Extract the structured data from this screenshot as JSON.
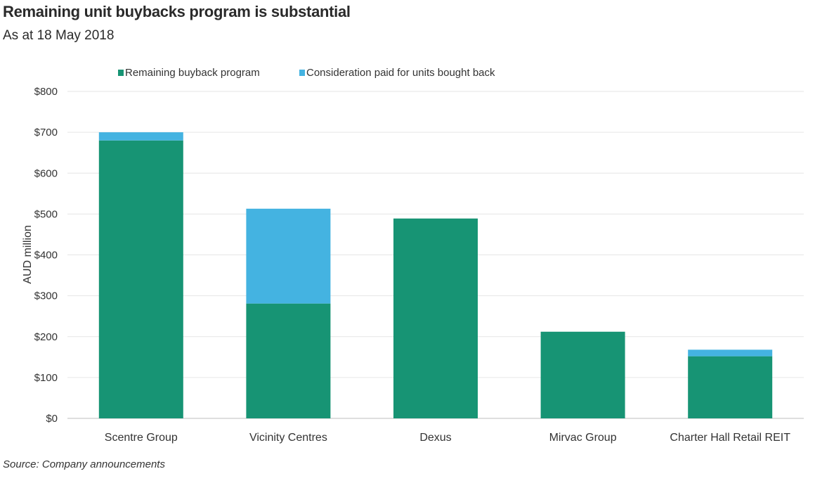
{
  "chart_data": {
    "type": "bar",
    "stacked": true,
    "title": "Remaining unit buybacks program is substantial",
    "subtitle": "As at 18 May 2018",
    "xlabel": "",
    "ylabel": "AUD million",
    "ylim": [
      0,
      800
    ],
    "yticks": [
      0,
      100,
      200,
      300,
      400,
      500,
      600,
      700,
      800
    ],
    "ytick_labels": [
      "$0",
      "$100",
      "$200",
      "$300",
      "$400",
      "$500",
      "$600",
      "$700",
      "$800"
    ],
    "categories": [
      "Scentre Group",
      "Vicinity Centres",
      "Dexus",
      "Mirvac Group",
      "Charter Hall Retail REIT"
    ],
    "series": [
      {
        "name": "Remaining buyback program",
        "color": "#179474",
        "values": [
          680,
          281,
          489,
          212,
          152
        ]
      },
      {
        "name": "Consideration paid for units bought back",
        "color": "#44b3e1",
        "values": [
          20,
          232,
          0,
          0,
          16
        ]
      }
    ],
    "legend_position": "top",
    "grid": true,
    "source": "Source: Company announcements"
  }
}
